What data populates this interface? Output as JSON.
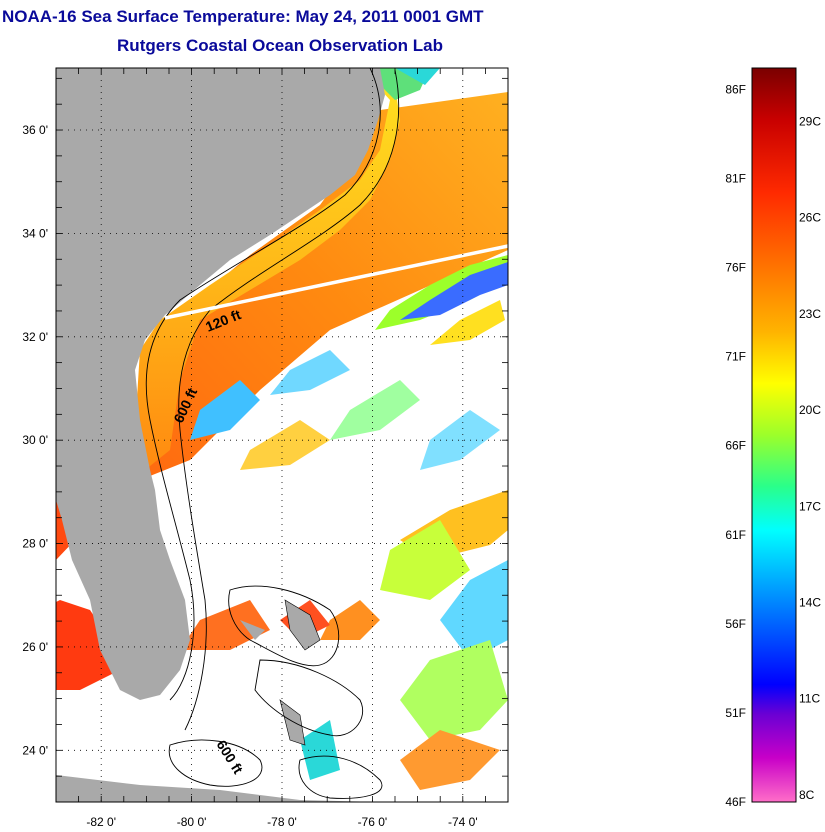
{
  "header": {
    "title": "NOAA-16 Sea Surface Temperature:  May 24, 2011 0001 GMT",
    "subtitle": "Rutgers Coastal Ocean Observation Lab"
  },
  "map": {
    "lat_range": [
      23,
      37.2
    ],
    "lon_range": [
      -83,
      -73
    ],
    "lat_ticks": [
      "36 0'",
      "34 0'",
      "32 0'",
      "30 0'",
      "28 0'",
      "26 0'",
      "24 0'"
    ],
    "lat_tick_values": [
      36,
      34,
      32,
      30,
      28,
      26,
      24
    ],
    "lon_ticks": [
      "-82 0'",
      "-80 0'",
      "-78 0'",
      "-76 0'",
      "-74 0'"
    ],
    "lon_tick_values": [
      -82,
      -80,
      -78,
      -76,
      -74
    ],
    "contour_labels": [
      "120 ft",
      "600 ft",
      "600 ft"
    ],
    "colors": {
      "land": "#a9a9a9",
      "cloud": "#ffffff",
      "gridline": "#000000",
      "transect": "#ffffff"
    }
  },
  "colorbar": {
    "fahrenheit_labels": [
      "86F",
      "81F",
      "76F",
      "71F",
      "66F",
      "61F",
      "56F",
      "51F",
      "46F"
    ],
    "celsius_labels": [
      "29C",
      "26C",
      "23C",
      "20C",
      "17C",
      "14C",
      "11C",
      "8C"
    ]
  }
}
